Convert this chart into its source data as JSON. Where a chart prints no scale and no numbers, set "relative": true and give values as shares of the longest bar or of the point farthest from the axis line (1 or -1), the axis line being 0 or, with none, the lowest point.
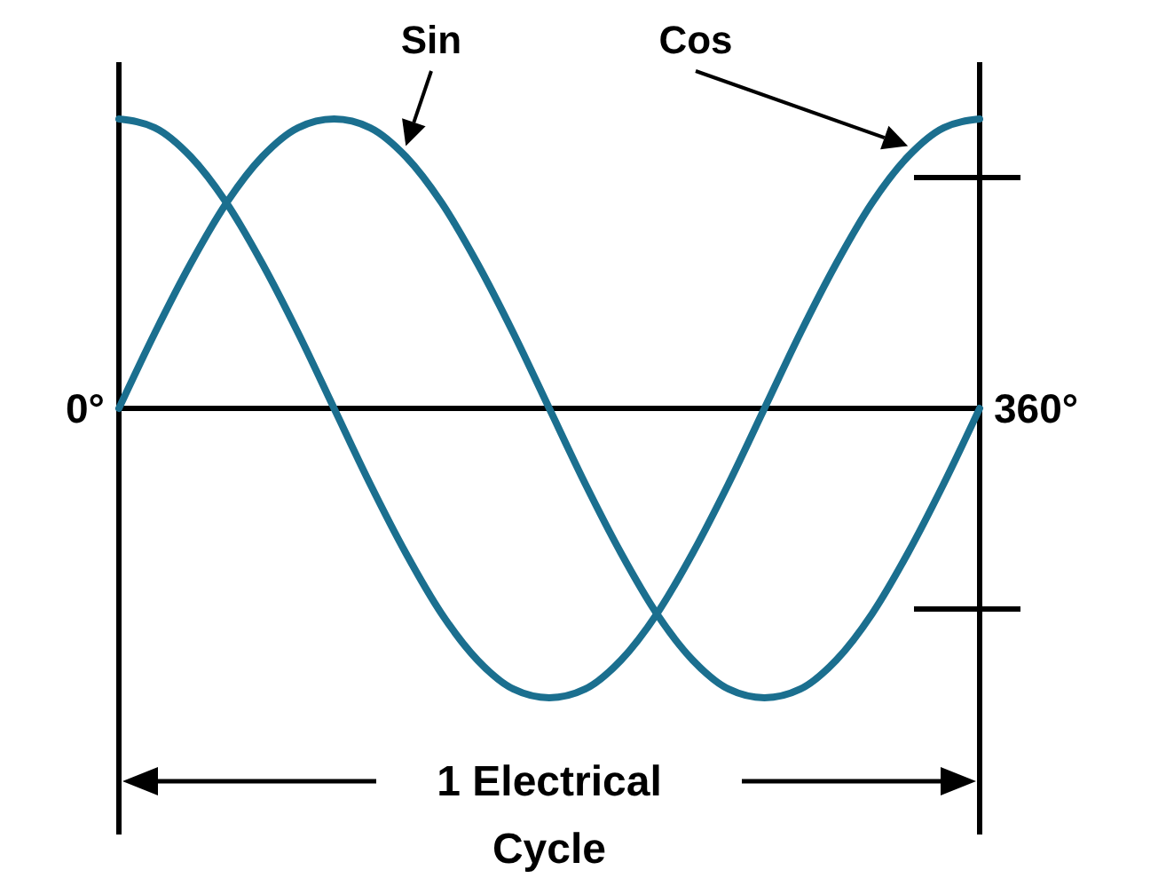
{
  "chart_data": {
    "type": "line",
    "relative": true,
    "xlabel": "1 Electrical Cycle",
    "annotations": [
      "0°",
      "360°"
    ],
    "categories": [
      null,
      null,
      null,
      null,
      null,
      null,
      null,
      null,
      null,
      null,
      null,
      null,
      null,
      null,
      null,
      null,
      null,
      null,
      null,
      null,
      null,
      null,
      null,
      null,
      null
    ],
    "legend": false,
    "series": [
      {
        "name": "Sin",
        "color": "#1b6f8f",
        "values": [
          0,
          0.26,
          0.5,
          0.71,
          0.87,
          0.97,
          1,
          0.97,
          0.87,
          0.71,
          0.5,
          0.26,
          0,
          -0.26,
          -0.5,
          -0.71,
          -0.87,
          -0.97,
          -1,
          -0.97,
          -0.87,
          -0.71,
          -0.5,
          -0.26,
          0
        ]
      },
      {
        "name": "Cos",
        "color": "#1b6f8f",
        "values": [
          1,
          0.97,
          0.87,
          0.71,
          0.5,
          0.26,
          0,
          -0.26,
          -0.5,
          -0.71,
          -0.87,
          -0.97,
          -1,
          -0.97,
          -0.87,
          -0.71,
          -0.5,
          -0.26,
          0,
          0.26,
          0.5,
          0.71,
          0.87,
          0.97,
          1
        ]
      }
    ]
  }
}
